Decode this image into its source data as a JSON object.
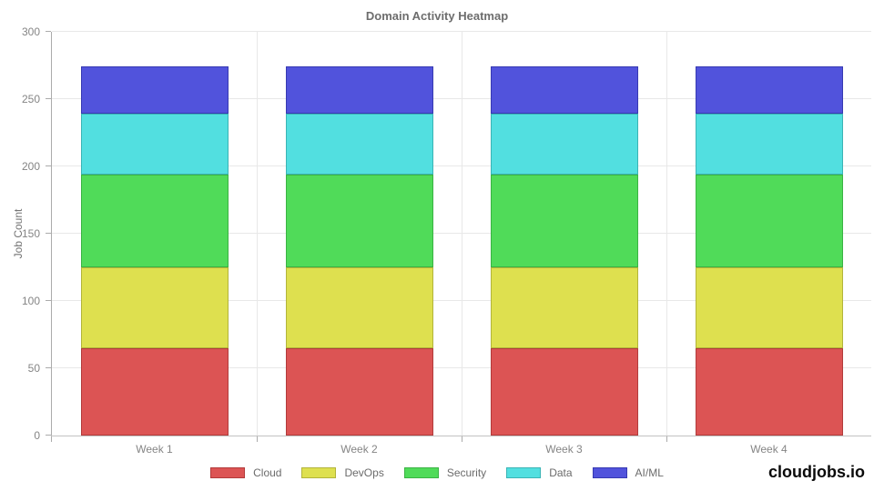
{
  "brand": {
    "label": "cloudjobs.io"
  },
  "chart_data": {
    "type": "bar",
    "stacked": true,
    "title": "Domain Activity Heatmap",
    "xlabel": "",
    "ylabel": "Job Count",
    "categories": [
      "Week 1",
      "Week 2",
      "Week 3",
      "Week 4"
    ],
    "series": [
      {
        "name": "Cloud",
        "color": "#dc5454",
        "border_color": "#b23b3b",
        "values": [
          65,
          65,
          65,
          65
        ]
      },
      {
        "name": "DevOps",
        "color": "#dee04f",
        "border_color": "#b2b43a",
        "values": [
          60,
          60,
          60,
          60
        ]
      },
      {
        "name": "Security",
        "color": "#50db59",
        "border_color": "#3ab343",
        "values": [
          69,
          69,
          69,
          69
        ]
      },
      {
        "name": "Data",
        "color": "#52dfe0",
        "border_color": "#3ab4b5",
        "values": [
          45,
          45,
          45,
          45
        ]
      },
      {
        "name": "AI/ML",
        "color": "#5153dc",
        "border_color": "#373ab2",
        "values": [
          35,
          35,
          35,
          35
        ]
      }
    ],
    "ylim": [
      0,
      300
    ],
    "yticks": [
      0,
      50,
      100,
      150,
      200,
      250,
      300
    ],
    "grid": true,
    "legend_position": "bottom",
    "colors": {
      "grid": "#e8e8e8",
      "axis": "#ababab",
      "tick_text": "#858585",
      "title_text": "#6d6d6d"
    }
  }
}
